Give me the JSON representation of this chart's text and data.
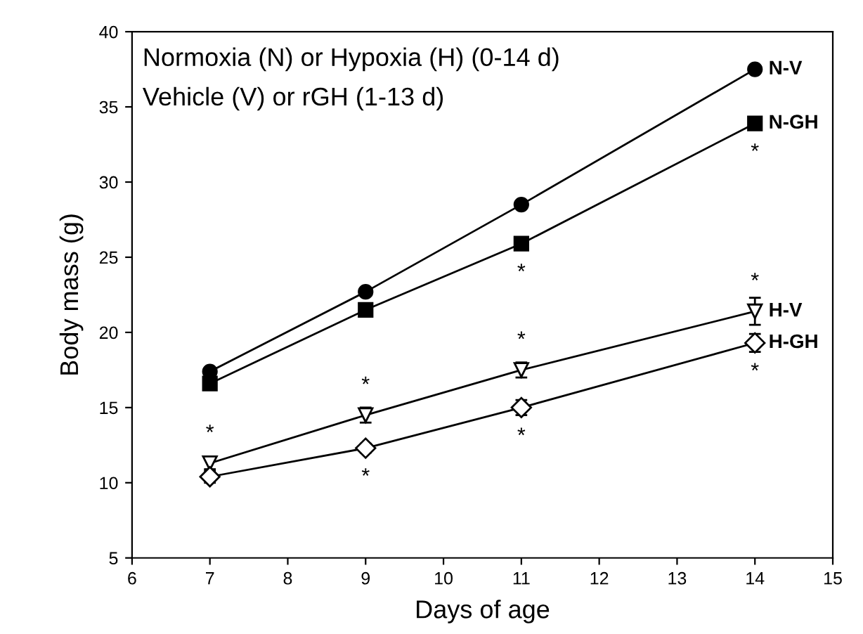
{
  "chart_data": {
    "type": "line",
    "xlabel": "Days of age",
    "ylabel": "Body mass (g)",
    "x": [
      7,
      9,
      11,
      14
    ],
    "xlim": [
      6,
      15
    ],
    "xticks": [
      6,
      7,
      8,
      9,
      10,
      11,
      12,
      13,
      14,
      15
    ],
    "ylim": [
      5,
      40
    ],
    "yticks": [
      5,
      10,
      15,
      20,
      25,
      30,
      35,
      40
    ],
    "grid": false,
    "legend": false,
    "line_style": "solid",
    "series": [
      {
        "name": "N-V",
        "color": "#000000",
        "marker": "circle",
        "values": [
          17.4,
          22.7,
          28.5,
          37.5
        ]
      },
      {
        "name": "N-GH",
        "color": "#000000",
        "marker": "square",
        "values": [
          16.6,
          21.5,
          25.9,
          33.9
        ]
      },
      {
        "name": "H-V",
        "color": "#000000",
        "marker": "triangle",
        "values": [
          11.3,
          14.5,
          17.5,
          21.4
        ],
        "errors": [
          0.4,
          0.5,
          0.5,
          0.9
        ]
      },
      {
        "name": "H-GH",
        "color": "#000000",
        "marker": "diamond",
        "values": [
          10.4,
          12.3,
          15.0,
          19.3
        ],
        "errors": [
          0.4,
          0.3,
          0.5,
          0.6
        ]
      }
    ],
    "annotations": [
      "Normoxia (N) or Hypoxia (H) (0-14 d)",
      "Vehicle (V) or rGH (1-13 d)",
      {
        "text": "*",
        "x": 7,
        "y": 11.3
      },
      {
        "text": "*",
        "x": 9,
        "y": 14.5
      },
      {
        "text": "*",
        "x": 9,
        "y": 12.3
      },
      {
        "text": "*",
        "x": 11,
        "y": 25.9
      },
      {
        "text": "*",
        "x": 11,
        "y": 17.5
      },
      {
        "text": "*",
        "x": 11,
        "y": 15.0
      },
      {
        "text": "*",
        "x": 14,
        "y": 33.9
      },
      {
        "text": "*",
        "x": 14,
        "y": 21.4
      },
      {
        "text": "*",
        "x": 14,
        "y": 19.3
      }
    ]
  }
}
